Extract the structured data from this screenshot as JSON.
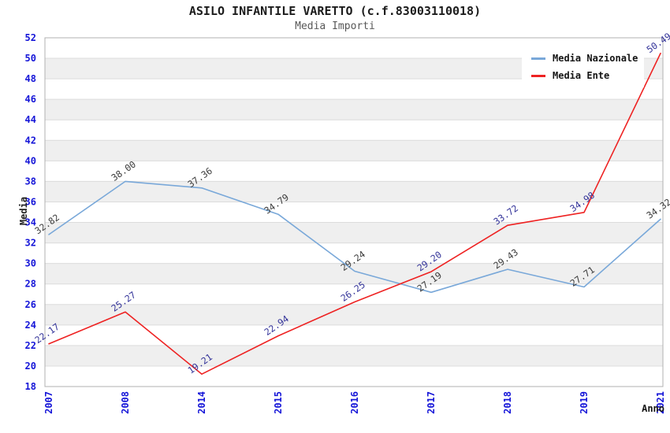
{
  "title": "ASILO INFANTILE VARETTO (c.f.83003110018)",
  "subtitle": "Media Importi",
  "chart_data": {
    "type": "line",
    "categories": [
      "2007",
      "2008",
      "2014",
      "2015",
      "2016",
      "2017",
      "2018",
      "2019",
      "2021"
    ],
    "series": [
      {
        "name": "Media Nazionale",
        "color": "#79a8d9",
        "label_color": "#3c3c3c",
        "values": [
          32.82,
          38.0,
          37.36,
          34.79,
          29.24,
          27.19,
          29.43,
          27.71,
          34.32
        ]
      },
      {
        "name": "Media Ente",
        "color": "#ee2222",
        "label_color": "#333399",
        "values": [
          22.17,
          25.27,
          19.21,
          22.94,
          26.25,
          29.2,
          33.72,
          34.98,
          50.49
        ]
      }
    ],
    "xlabel": "Anno",
    "ylabel": "Media",
    "ylim": [
      18,
      52
    ],
    "ytick_step": 2,
    "value_label_decimals": 2,
    "grid": "horizontal-bands",
    "legend_position": "top-right",
    "band_color": "#efefef",
    "gridline_color": "#dcdcdc",
    "border_color": "#b0b0b0",
    "tick_label_color": "#1515d8"
  }
}
